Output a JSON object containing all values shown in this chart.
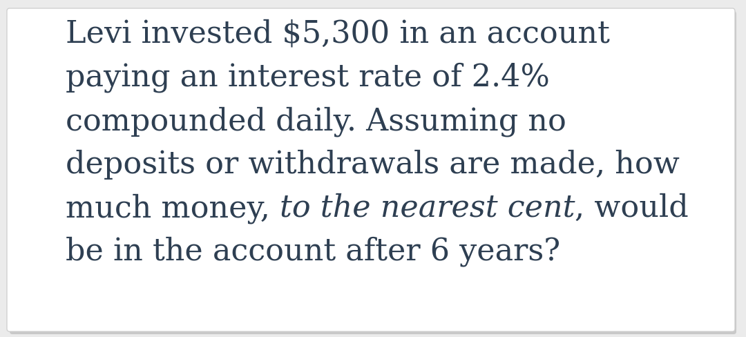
{
  "background_color": "#ebebeb",
  "card_color": "#ffffff",
  "text_color": "#2e3f52",
  "font_size": 32,
  "line1": "Levi invested $5,300 in an account",
  "line2": "paying an interest rate of 2.4%",
  "line3": "compounded daily. Assuming no",
  "line4": "deposits or withdrawals are made, how",
  "line5_pre": "much money, ",
  "line5_italic": "to the nearest cent",
  "line5_post": ", would",
  "line6": "be in the account after 6 years?",
  "figwidth": 10.8,
  "figheight": 4.88,
  "dpi": 100
}
